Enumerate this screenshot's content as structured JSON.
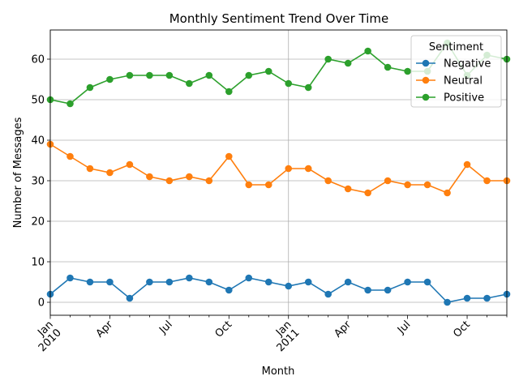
{
  "chart_data": {
    "type": "line",
    "title": "Monthly Sentiment Trend Over Time",
    "xlabel": "Month",
    "ylabel": "Number of Messages",
    "ylim": [
      -3.2,
      67.2
    ],
    "yticks": [
      0,
      10,
      20,
      30,
      40,
      50,
      60
    ],
    "grid": true,
    "legend": {
      "title": "Sentiment",
      "placement": "top-right"
    },
    "x_ticks": [
      {
        "index": 0,
        "label": "Jan",
        "sub": "2010"
      },
      {
        "index": 3,
        "label": "Apr",
        "sub": ""
      },
      {
        "index": 6,
        "label": "Jul",
        "sub": ""
      },
      {
        "index": 9,
        "label": "Oct",
        "sub": ""
      },
      {
        "index": 12,
        "label": "Jan",
        "sub": "2011"
      },
      {
        "index": 15,
        "label": "Apr",
        "sub": ""
      },
      {
        "index": 18,
        "label": "Jul",
        "sub": ""
      },
      {
        "index": 21,
        "label": "Oct",
        "sub": ""
      }
    ],
    "x": [
      "2010-01",
      "2010-02",
      "2010-03",
      "2010-04",
      "2010-05",
      "2010-06",
      "2010-07",
      "2010-08",
      "2010-09",
      "2010-10",
      "2010-11",
      "2010-12",
      "2011-01",
      "2011-02",
      "2011-03",
      "2011-04",
      "2011-05",
      "2011-06",
      "2011-07",
      "2011-08",
      "2011-09",
      "2011-10",
      "2011-11",
      "2011-12"
    ],
    "series": [
      {
        "name": "Negative",
        "color": "#1f77b4",
        "values": [
          2,
          6,
          5,
          5,
          1,
          5,
          5,
          6,
          5,
          3,
          6,
          5,
          4,
          5,
          2,
          5,
          3,
          3,
          5,
          5,
          0,
          1,
          1,
          2
        ]
      },
      {
        "name": "Neutral",
        "color": "#ff7f0e",
        "values": [
          39,
          36,
          33,
          32,
          34,
          31,
          30,
          31,
          30,
          36,
          29,
          29,
          33,
          33,
          30,
          28,
          27,
          30,
          29,
          29,
          27,
          34,
          30,
          30
        ]
      },
      {
        "name": "Positive",
        "color": "#2ca02c",
        "values": [
          50,
          49,
          53,
          55,
          56,
          56,
          56,
          54,
          56,
          52,
          56,
          57,
          54,
          53,
          60,
          59,
          62,
          58,
          57,
          57,
          64,
          56,
          61,
          60
        ]
      }
    ]
  }
}
